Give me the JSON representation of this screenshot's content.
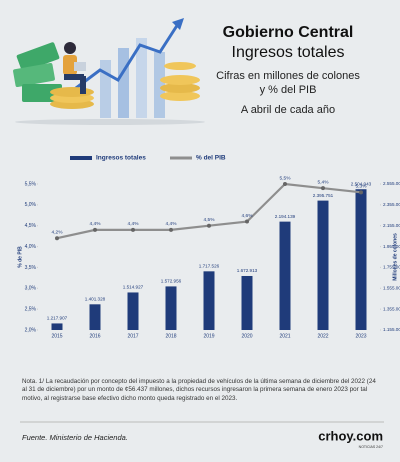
{
  "chart_data": {
    "type": "bar",
    "title": "Gobierno Central",
    "subtitle": "Ingresos totales",
    "description": [
      "Cifras en millones de colones",
      "y % del PIB"
    ],
    "period": "A abril de cada año",
    "ylabel": "% de PIB",
    "y2label": "Millones de colones",
    "categories": [
      "2015",
      "2016",
      "2017",
      "2018",
      "2019",
      "2020",
      "2021",
      "2022",
      "2023"
    ],
    "series": [
      {
        "name": "Ingresos totales",
        "type": "bar",
        "axis": "y2",
        "color": "#1f3b7a",
        "values": [
          1217907,
          1401328,
          1514927,
          1572956,
          1717526,
          1672913,
          2194139,
          2395751,
          2504943
        ],
        "value_labels": [
          "1.217.907",
          "1.401.328",
          "1.514.927",
          "1.572.956",
          "1.717.526",
          "1.672.913",
          "2.194.139",
          "2.395.751",
          "2.504.943"
        ]
      },
      {
        "name": "% del PIB",
        "type": "line",
        "color": "#8e8e8e",
        "values": [
          4.2,
          4.4,
          4.4,
          4.4,
          4.5,
          4.6,
          5.5,
          5.4,
          5.3
        ],
        "value_labels": [
          "4,2%",
          "4,4%",
          "4,4%",
          "4,4%",
          "4,5%",
          "4,6%",
          "5,5%",
          "5,4%",
          "5,3%"
        ]
      }
    ],
    "ylim": [
      2,
      5.5
    ],
    "yticks": [
      {
        "value": 2,
        "label": "2,0%"
      },
      {
        "value": 2.5,
        "label": "2,5%"
      },
      {
        "value": 3,
        "label": "3,0%"
      },
      {
        "value": 3.5,
        "label": "3,5%"
      },
      {
        "value": 4,
        "label": "4,0%"
      },
      {
        "value": 4.5,
        "label": "4,5%"
      },
      {
        "value": 5,
        "label": "5,0%"
      },
      {
        "value": 5.5,
        "label": "5,5%"
      }
    ],
    "y2lim": [
      1155000,
      2555000
    ],
    "y2ticks": [
      {
        "value": 1155000,
        "label": "1.155.000"
      },
      {
        "value": 1355000,
        "label": "1.355.000"
      },
      {
        "value": 1555000,
        "label": "1.555.000"
      },
      {
        "value": 1755000,
        "label": "1.755.000"
      },
      {
        "value": 1955000,
        "label": "1.955.000"
      },
      {
        "value": 2155000,
        "label": "2.155.000"
      },
      {
        "value": 2355000,
        "label": "2.355.000"
      },
      {
        "value": 2555000,
        "label": "2.555.000"
      }
    ],
    "note": "Nota. 1/ La recaudación por concepto del impuesto a la propiedad de vehículos de la última semana de diciembre del 2022 (24 al 31 de diciembre) por un monto de ¢56.437 millones, dichos recursos ingresaron la primera semana de enero 2023 por tal motivo, al registrarse base efectivo dicho monto queda registrado en el 2023.",
    "source": "Fuente. Ministerio de Hacienda.",
    "brand": "crhoy.com",
    "brand_tagline": "NOTICIAS 24/7"
  }
}
